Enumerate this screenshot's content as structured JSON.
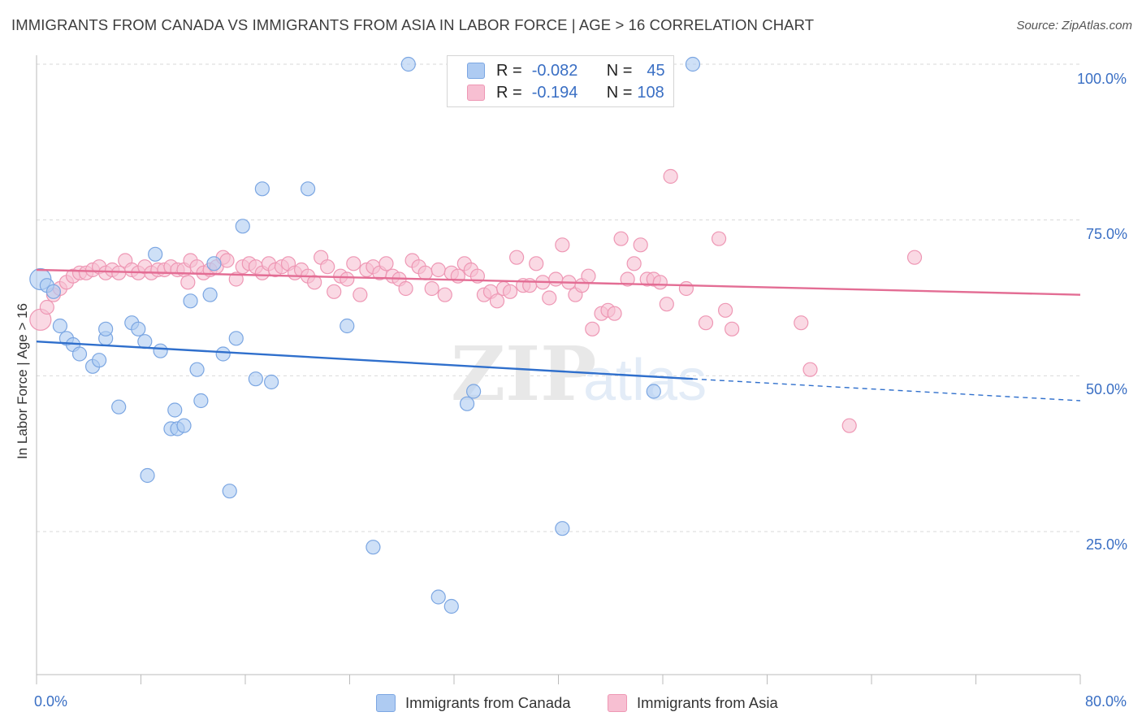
{
  "title": "IMMIGRANTS FROM CANADA VS IMMIGRANTS FROM ASIA IN LABOR FORCE | AGE > 16 CORRELATION CHART",
  "source": "Source: ZipAtlas.com",
  "watermark": {
    "zip": "ZIP",
    "atlas": "atlas"
  },
  "legend": {
    "r_label": "R =",
    "n_label": "N =",
    "rows": [
      {
        "r": "-0.082",
        "n": "45",
        "color": "#aecbf2",
        "border": "#7ba6e2"
      },
      {
        "r": "-0.194",
        "n": "108",
        "color": "#f7bfd2",
        "border": "#ee97b4"
      }
    ]
  },
  "bottom_legend": [
    "Immigrants from Canada",
    "Immigrants from Asia"
  ],
  "chart_data": {
    "type": "scatter",
    "title": "IMMIGRANTS FROM CANADA VS IMMIGRANTS FROM ASIA IN LABOR FORCE | AGE > 16 CORRELATION CHART",
    "xlabel": "",
    "ylabel": "In Labor Force | Age > 16",
    "xlim": [
      0,
      80
    ],
    "ylim": [
      0,
      105
    ],
    "x_tick_labels": [
      "0.0%",
      "80.0%"
    ],
    "y_ticks": [
      25,
      50,
      75,
      100
    ],
    "y_tick_labels": [
      "25.0%",
      "50.0%",
      "75.0%",
      "100.0%"
    ],
    "grid": true,
    "legend_position": "top-center",
    "series": [
      {
        "name": "Immigrants from Canada",
        "color": "#aecbf2",
        "stroke": "#7ba6e2",
        "line_color": "#2f6fcc",
        "trend": {
          "x1": 0,
          "y1": 55.5,
          "x2": 50.3,
          "y2": 49.5,
          "dash_to_x": 80,
          "dash_to_y": 46.0
        },
        "points": [
          [
            0.3,
            65.5
          ],
          [
            0.8,
            64.5
          ],
          [
            1.3,
            63.5
          ],
          [
            1.8,
            58.0
          ],
          [
            2.3,
            56.0
          ],
          [
            2.8,
            55.0
          ],
          [
            3.3,
            53.5
          ],
          [
            4.3,
            51.5
          ],
          [
            4.8,
            52.5
          ],
          [
            5.3,
            56.0
          ],
          [
            5.3,
            57.5
          ],
          [
            6.3,
            45.0
          ],
          [
            7.3,
            58.5
          ],
          [
            7.8,
            57.5
          ],
          [
            8.3,
            55.5
          ],
          [
            8.5,
            34.0
          ],
          [
            9.1,
            69.5
          ],
          [
            9.5,
            54.0
          ],
          [
            10.3,
            41.5
          ],
          [
            10.6,
            44.5
          ],
          [
            10.8,
            41.5
          ],
          [
            11.3,
            42.0
          ],
          [
            11.8,
            62.0
          ],
          [
            12.3,
            51.0
          ],
          [
            12.6,
            46.0
          ],
          [
            13.3,
            63.0
          ],
          [
            13.6,
            68.0
          ],
          [
            14.3,
            53.5
          ],
          [
            14.8,
            31.5
          ],
          [
            15.3,
            56.0
          ],
          [
            15.8,
            74.0
          ],
          [
            16.8,
            49.5
          ],
          [
            17.3,
            80.0
          ],
          [
            18.0,
            49.0
          ],
          [
            20.8,
            80.0
          ],
          [
            23.8,
            58.0
          ],
          [
            25.8,
            22.5
          ],
          [
            28.5,
            100.0
          ],
          [
            30.8,
            14.5
          ],
          [
            31.8,
            13.0
          ],
          [
            33.0,
            45.5
          ],
          [
            33.5,
            47.5
          ],
          [
            40.3,
            25.5
          ],
          [
            47.3,
            47.5
          ],
          [
            50.3,
            100.0
          ]
        ]
      },
      {
        "name": "Immigrants from Asia",
        "color": "#f7bfd2",
        "stroke": "#ee97b4",
        "line_color": "#e36d94",
        "trend": {
          "x1": 0,
          "y1": 67.0,
          "x2": 80,
          "y2": 63.0
        },
        "points": [
          [
            0.3,
            59.0
          ],
          [
            0.8,
            61.0
          ],
          [
            1.3,
            63.0
          ],
          [
            1.8,
            64.0
          ],
          [
            2.3,
            65.0
          ],
          [
            2.8,
            66.0
          ],
          [
            3.3,
            66.5
          ],
          [
            3.8,
            66.5
          ],
          [
            4.3,
            67.0
          ],
          [
            4.8,
            67.5
          ],
          [
            5.3,
            66.5
          ],
          [
            5.8,
            67.0
          ],
          [
            6.3,
            66.5
          ],
          [
            6.8,
            68.5
          ],
          [
            7.3,
            67.0
          ],
          [
            7.8,
            66.5
          ],
          [
            8.3,
            67.5
          ],
          [
            8.8,
            66.5
          ],
          [
            9.3,
            67.0
          ],
          [
            9.8,
            67.0
          ],
          [
            10.3,
            67.5
          ],
          [
            10.8,
            67.0
          ],
          [
            11.3,
            67.0
          ],
          [
            11.6,
            65.0
          ],
          [
            11.8,
            68.5
          ],
          [
            12.3,
            67.5
          ],
          [
            12.8,
            66.5
          ],
          [
            13.3,
            67.0
          ],
          [
            13.8,
            67.5
          ],
          [
            14.3,
            69.0
          ],
          [
            14.6,
            68.5
          ],
          [
            15.3,
            65.5
          ],
          [
            15.8,
            67.5
          ],
          [
            16.3,
            68.0
          ],
          [
            16.8,
            67.5
          ],
          [
            17.3,
            66.5
          ],
          [
            17.8,
            68.0
          ],
          [
            18.3,
            67.0
          ],
          [
            18.8,
            67.5
          ],
          [
            19.3,
            68.0
          ],
          [
            19.8,
            66.5
          ],
          [
            20.3,
            67.0
          ],
          [
            20.8,
            66.0
          ],
          [
            21.3,
            65.0
          ],
          [
            21.8,
            69.0
          ],
          [
            22.3,
            67.5
          ],
          [
            22.8,
            63.5
          ],
          [
            23.3,
            66.0
          ],
          [
            23.8,
            65.5
          ],
          [
            24.3,
            68.0
          ],
          [
            24.8,
            63.0
          ],
          [
            25.3,
            67.0
          ],
          [
            25.8,
            67.5
          ],
          [
            26.3,
            66.5
          ],
          [
            26.8,
            68.0
          ],
          [
            27.3,
            66.0
          ],
          [
            27.8,
            65.5
          ],
          [
            28.3,
            64.0
          ],
          [
            28.8,
            68.5
          ],
          [
            29.3,
            67.5
          ],
          [
            29.8,
            66.5
          ],
          [
            30.3,
            64.0
          ],
          [
            30.8,
            67.0
          ],
          [
            31.3,
            63.0
          ],
          [
            31.8,
            66.5
          ],
          [
            32.3,
            66.0
          ],
          [
            32.8,
            68.0
          ],
          [
            33.3,
            67.0
          ],
          [
            33.8,
            66.0
          ],
          [
            34.3,
            63.0
          ],
          [
            34.8,
            63.5
          ],
          [
            35.3,
            62.0
          ],
          [
            35.8,
            64.0
          ],
          [
            36.3,
            63.5
          ],
          [
            36.8,
            69.0
          ],
          [
            37.3,
            64.5
          ],
          [
            37.8,
            64.5
          ],
          [
            38.3,
            68.0
          ],
          [
            38.8,
            65.0
          ],
          [
            39.3,
            62.5
          ],
          [
            39.8,
            65.5
          ],
          [
            40.3,
            71.0
          ],
          [
            40.8,
            65.0
          ],
          [
            41.3,
            63.0
          ],
          [
            41.8,
            64.5
          ],
          [
            42.3,
            66.0
          ],
          [
            42.6,
            57.5
          ],
          [
            43.3,
            60.0
          ],
          [
            43.8,
            60.5
          ],
          [
            44.3,
            60.0
          ],
          [
            44.8,
            72.0
          ],
          [
            45.3,
            65.5
          ],
          [
            45.8,
            68.0
          ],
          [
            46.3,
            71.0
          ],
          [
            46.8,
            65.5
          ],
          [
            47.3,
            65.5
          ],
          [
            47.8,
            65.0
          ],
          [
            48.3,
            61.5
          ],
          [
            48.6,
            82.0
          ],
          [
            49.8,
            64.0
          ],
          [
            51.3,
            58.5
          ],
          [
            52.3,
            72.0
          ],
          [
            52.8,
            60.5
          ],
          [
            53.3,
            57.5
          ],
          [
            58.6,
            58.5
          ],
          [
            59.3,
            51.0
          ],
          [
            62.3,
            42.0
          ],
          [
            67.3,
            69.0
          ]
        ]
      }
    ]
  }
}
